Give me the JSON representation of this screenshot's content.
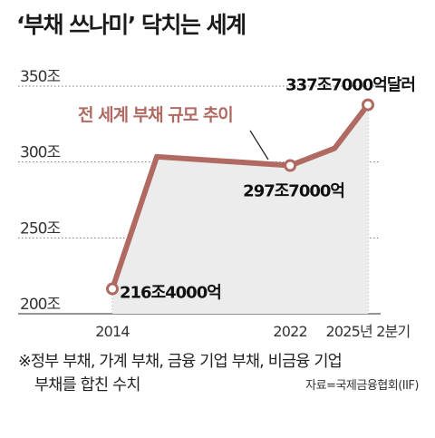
{
  "title": "‘부채 쓰나미’ 닥치는 세계",
  "chart_data": {
    "type": "line",
    "series": [
      {
        "name": "전 세계 부채 규모 추이",
        "points": [
          {
            "x": 2014,
            "y": 216.4
          },
          {
            "x": 2016,
            "y": 303.5
          },
          {
            "x": 2022,
            "y": 297.7
          },
          {
            "x": 2024,
            "y": 309
          },
          {
            "x": 2025.5,
            "y": 337.7
          }
        ],
        "color": "#b06a62"
      }
    ],
    "data_labels": [
      {
        "x": 2014,
        "y": 216.4,
        "text": "216조4000억"
      },
      {
        "x": 2022,
        "y": 297.7,
        "text": "297조7000억"
      },
      {
        "x": 2025.5,
        "y": 337.7,
        "text": "337조7000억달러"
      }
    ],
    "y_ticks": [
      {
        "value": 350,
        "label": "350조"
      },
      {
        "value": 300,
        "label": "300조"
      },
      {
        "value": 250,
        "label": "250조"
      },
      {
        "value": 200,
        "label": "200조"
      }
    ],
    "x_ticks": [
      {
        "value": 2014,
        "label": "2014"
      },
      {
        "value": 2022,
        "label": "2022"
      },
      {
        "value": 2025.5,
        "label": "2025년 2분기"
      }
    ],
    "ylim": [
      200,
      350
    ],
    "xlim": [
      2014,
      2025.5
    ],
    "grid": "horizontal dotted",
    "area_fill": "#ececec"
  },
  "footnote": {
    "line1": "※정부 부채, 가계 부채, 금융 기업 부채, 비금융 기업",
    "line2": "부채를 합친 수치"
  },
  "source": "자료=국제금융협회(IIF)"
}
